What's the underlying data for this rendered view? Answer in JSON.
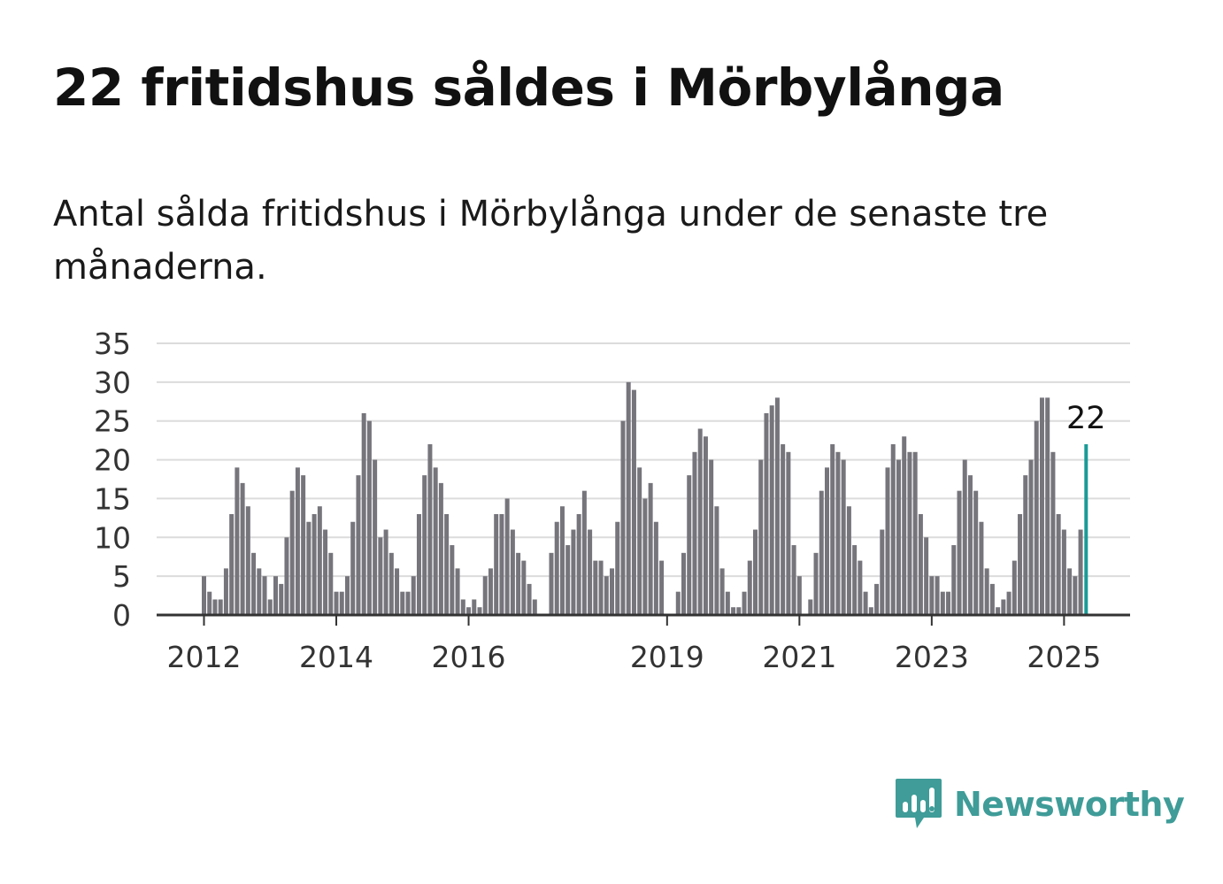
{
  "title": "22 fritidshus såldes i Mörbylånga",
  "subtitle": "Antal sålda fritidshus i Mörbylånga under de senaste tre månaderna.",
  "brand": {
    "name": "Newsworthy",
    "color": "#3f9c98",
    "icon": "newsworthy-logo-icon"
  },
  "colors": {
    "bar": "#76757c",
    "highlight": "#1a9a96",
    "grid": "#dcdcdc",
    "axis": "#333333"
  },
  "chart_data": {
    "type": "bar",
    "x_tick_labels": [
      "2012",
      "2014",
      "2016",
      "2019",
      "2021",
      "2023",
      "2025"
    ],
    "x_tick_index": [
      0,
      24,
      48,
      84,
      108,
      132,
      156
    ],
    "y_ticks": [
      0,
      5,
      10,
      15,
      20,
      25,
      30,
      35
    ],
    "ylim": [
      0,
      35
    ],
    "grid": true,
    "values": [
      5,
      3,
      2,
      2,
      6,
      13,
      19,
      17,
      14,
      8,
      6,
      5,
      2,
      5,
      4,
      10,
      16,
      19,
      18,
      12,
      13,
      14,
      11,
      8,
      3,
      3,
      5,
      12,
      18,
      26,
      25,
      20,
      10,
      11,
      8,
      6,
      3,
      3,
      5,
      13,
      18,
      22,
      19,
      17,
      13,
      9,
      6,
      2,
      1,
      2,
      1,
      5,
      6,
      13,
      13,
      15,
      11,
      8,
      7,
      4,
      2,
      0,
      0,
      8,
      12,
      14,
      9,
      11,
      13,
      16,
      11,
      7,
      7,
      5,
      6,
      12,
      25,
      30,
      29,
      19,
      15,
      17,
      12,
      7,
      0,
      0,
      3,
      8,
      18,
      21,
      24,
      23,
      20,
      14,
      6,
      3,
      1,
      1,
      3,
      7,
      11,
      20,
      26,
      27,
      28,
      22,
      21,
      9,
      5,
      0,
      2,
      8,
      16,
      19,
      22,
      21,
      20,
      14,
      9,
      7,
      3,
      1,
      4,
      11,
      19,
      22,
      20,
      23,
      21,
      21,
      13,
      10,
      5,
      5,
      3,
      3,
      9,
      16,
      20,
      18,
      16,
      12,
      6,
      4,
      1,
      2,
      3,
      7,
      13,
      18,
      20,
      25,
      28,
      28,
      21,
      13,
      11,
      6,
      5,
      11,
      22
    ],
    "highlight_label": "22"
  }
}
